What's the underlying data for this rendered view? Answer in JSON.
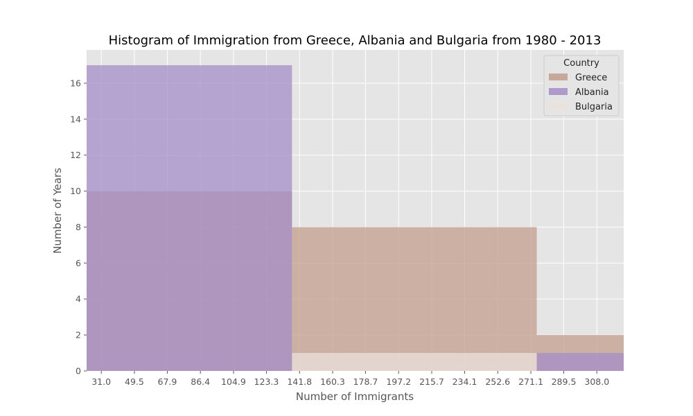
{
  "chart_data": {
    "type": "bar",
    "title": "Histogram of Immigration from Greece, Albania and Bulgaria from 1980 - 2013",
    "xlabel": "Number of Immigrants",
    "ylabel": "Number of Years",
    "x_tick_labels": [
      "31.0",
      "49.5",
      "67.9",
      "86.4",
      "104.9",
      "123.3",
      "141.8",
      "160.3",
      "178.7",
      "197.2",
      "215.7",
      "234.1",
      "252.6",
      "271.1",
      "289.5",
      "308.0"
    ],
    "y_ticks": [
      0,
      2,
      4,
      6,
      8,
      10,
      12,
      14,
      16
    ],
    "ylim": [
      0,
      17.85
    ],
    "grid": true,
    "legend": {
      "title": "Country",
      "position": "top-right"
    },
    "series": [
      {
        "name": "Greece",
        "color": "#c39d8e",
        "bins": [
          {
            "x0": 22.8,
            "x1": 137.6,
            "value": 10
          },
          {
            "x0": 137.6,
            "x1": 274.4,
            "value": 8
          },
          {
            "x0": 274.4,
            "x1": 323.0,
            "value": 2
          }
        ]
      },
      {
        "name": "Albania",
        "color": "#a48ec8",
        "bins": [
          {
            "x0": 22.8,
            "x1": 137.6,
            "value": 17
          },
          {
            "x0": 137.6,
            "x1": 274.4,
            "value": 0
          },
          {
            "x0": 274.4,
            "x1": 323.0,
            "value": 1
          }
        ]
      },
      {
        "name": "Bulgaria",
        "color": "#ebe2dc",
        "bins": [
          {
            "x0": 22.8,
            "x1": 137.6,
            "value": 0
          },
          {
            "x0": 137.6,
            "x1": 274.4,
            "value": 1
          },
          {
            "x0": 274.4,
            "x1": 323.0,
            "value": 0
          }
        ]
      }
    ]
  }
}
